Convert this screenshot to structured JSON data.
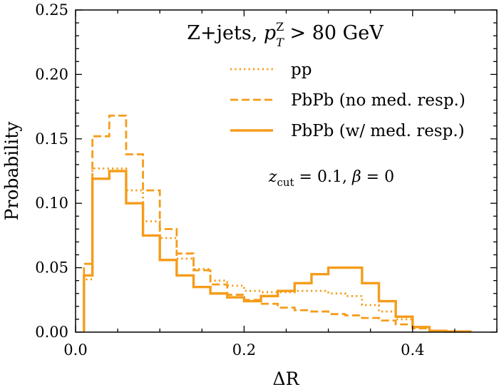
{
  "chart_data": {
    "type": "line",
    "drawstyle": "step",
    "title": "Z+jets, p_T^Z > 80 GeV",
    "title_parts": {
      "prefix": "Z+jets, ",
      "symbol": "p",
      "sub": "T",
      "sup": "Z",
      "suffix": " > 80 GeV"
    },
    "annotation": "z_cut = 0.1, β = 0",
    "annotation_parts": {
      "symbol1": "z",
      "sub1": "cut",
      "rest": " = 0.1, ",
      "symbol2": "β",
      "rest2": " = 0"
    },
    "xlabel": "ΔR",
    "ylabel": "Probability",
    "xlim": [
      0.0,
      0.5
    ],
    "ylim": [
      0.0,
      0.25
    ],
    "x_ticks": [
      0.0,
      0.2,
      0.4
    ],
    "x_tick_labels": [
      "0.0",
      "0.2",
      "0.4"
    ],
    "y_ticks": [
      0.0,
      0.05,
      0.1,
      0.15,
      0.2,
      0.25
    ],
    "y_tick_labels": [
      "0.00",
      "0.05",
      "0.10",
      "0.15",
      "0.20",
      "0.25"
    ],
    "grid": false,
    "legend_position": "top-right",
    "color": "#f59c1a",
    "bin_edges": [
      0.01,
      0.02,
      0.04,
      0.06,
      0.08,
      0.1,
      0.12,
      0.14,
      0.16,
      0.18,
      0.2,
      0.22,
      0.24,
      0.26,
      0.28,
      0.3,
      0.32,
      0.34,
      0.36,
      0.38,
      0.4,
      0.42,
      0.44,
      0.47
    ],
    "series": [
      {
        "name": "pp",
        "style": "dotted",
        "values": [
          0.041,
          0.127,
          0.127,
          0.11,
          0.086,
          0.073,
          0.057,
          0.049,
          0.04,
          0.036,
          0.032,
          0.031,
          0.031,
          0.032,
          0.032,
          0.03,
          0.028,
          0.021,
          0.016,
          0.01,
          0.004,
          0.001,
          0.0005
        ]
      },
      {
        "name": "PbPb (no med. resp.)",
        "style": "dashed",
        "values": [
          0.053,
          0.152,
          0.168,
          0.138,
          0.11,
          0.08,
          0.061,
          0.048,
          0.037,
          0.029,
          0.025,
          0.022,
          0.019,
          0.017,
          0.016,
          0.014,
          0.013,
          0.011,
          0.009,
          0.006,
          0.003,
          0.001,
          0.0005
        ]
      },
      {
        "name": "PbPb (w/ med. resp.)",
        "style": "solid",
        "values": [
          0.044,
          0.119,
          0.125,
          0.1,
          0.075,
          0.056,
          0.044,
          0.035,
          0.03,
          0.027,
          0.024,
          0.028,
          0.032,
          0.038,
          0.045,
          0.05,
          0.05,
          0.038,
          0.024,
          0.012,
          0.004,
          0.001,
          0.0005
        ]
      }
    ]
  }
}
